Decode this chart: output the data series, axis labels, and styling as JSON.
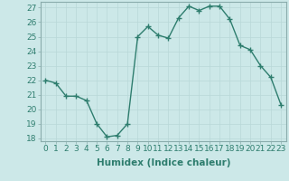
{
  "x": [
    0,
    1,
    2,
    3,
    4,
    5,
    6,
    7,
    8,
    9,
    10,
    11,
    12,
    13,
    14,
    15,
    16,
    17,
    18,
    19,
    20,
    21,
    22,
    23
  ],
  "y": [
    22,
    21.8,
    20.9,
    20.9,
    20.6,
    19.0,
    18.1,
    18.2,
    19.0,
    25.0,
    25.7,
    25.1,
    24.9,
    26.3,
    27.1,
    26.8,
    27.1,
    27.1,
    26.2,
    24.4,
    24.1,
    23.0,
    22.2,
    20.3
  ],
  "line_color": "#2e7d6e",
  "marker": "+",
  "marker_size": 4,
  "bg_color": "#cce8e8",
  "grid_color": "#b8d8d8",
  "xlabel": "Humidex (Indice chaleur)",
  "ylim": [
    17.8,
    27.4
  ],
  "xlim": [
    -0.5,
    23.5
  ],
  "yticks": [
    18,
    19,
    20,
    21,
    22,
    23,
    24,
    25,
    26,
    27
  ],
  "xticks": [
    0,
    1,
    2,
    3,
    4,
    5,
    6,
    7,
    8,
    9,
    10,
    11,
    12,
    13,
    14,
    15,
    16,
    17,
    18,
    19,
    20,
    21,
    22,
    23
  ],
  "xtick_labels": [
    "0",
    "1",
    "2",
    "3",
    "4",
    "5",
    "6",
    "7",
    "8",
    "9",
    "10",
    "11",
    "12",
    "13",
    "14",
    "15",
    "16",
    "17",
    "18",
    "19",
    "20",
    "21",
    "22",
    "23"
  ],
  "xlabel_fontsize": 7.5,
  "tick_fontsize": 6.5,
  "linewidth": 1.0,
  "tick_color": "#2e7d6e",
  "label_color": "#2e7d6e"
}
